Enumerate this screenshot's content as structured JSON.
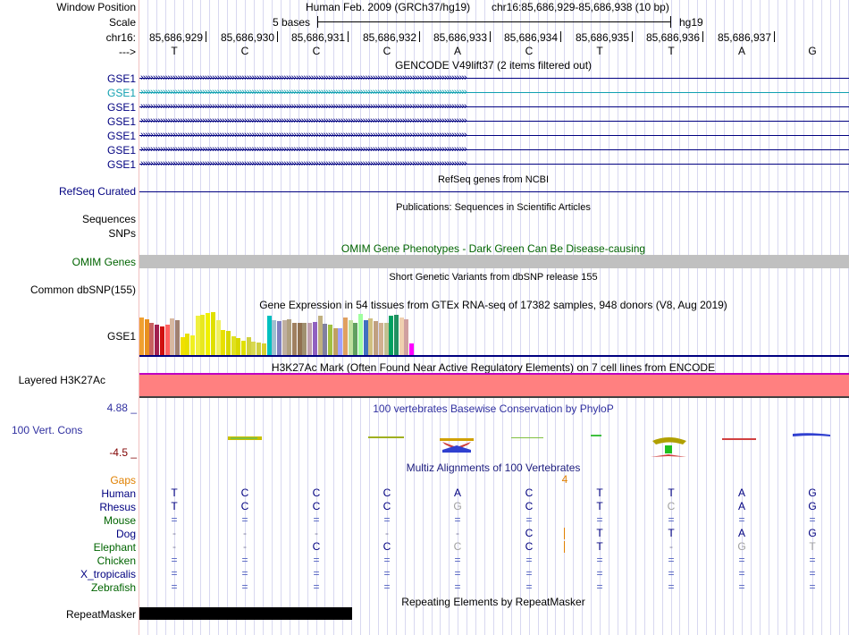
{
  "header": {
    "window_position_label": "Window Position",
    "assembly": "Human Feb. 2009 (GRCh37/hg19)",
    "range": "chr16:85,686,929-85,686,938 (10 bp)",
    "scale_label": "Scale",
    "scale_text": "5 bases",
    "scale_assembly": "hg19",
    "chrom_label": "chr16:",
    "strand_label": "--->",
    "positions": [
      "85,686,929",
      "85,686,930",
      "85,686,931",
      "85,686,932",
      "85,686,933",
      "85,686,934",
      "85,686,935",
      "85,686,936",
      "85,686,937"
    ]
  },
  "sequence": [
    "T",
    "C",
    "C",
    "C",
    "A",
    "C",
    "T",
    "T",
    "A",
    "G"
  ],
  "gencode": {
    "title": "GENCODE V49lift37 (2 items filtered out)",
    "items": [
      "GSE1",
      "GSE1",
      "GSE1",
      "GSE1",
      "GSE1",
      "GSE1",
      "GSE1"
    ]
  },
  "refseq": {
    "label": "RefSeq Curated",
    "title": "RefSeq genes from NCBI"
  },
  "publications": {
    "label_sequences": "Sequences",
    "label_snps": "SNPs",
    "title": "Publications: Sequences in Scientific Articles"
  },
  "omim": {
    "label": "OMIM Genes",
    "title": "OMIM Gene Phenotypes - Dark Green Can Be Disease-causing"
  },
  "dbsnp": {
    "label": "Common dbSNP(155)",
    "title": "Short Genetic Variants from dbSNP release 155"
  },
  "gtex": {
    "label": "GSE1",
    "title": "Gene Expression in 54 tissues from GTEx RNA-seq of 17382 samples, 948 donors (V8, Aug 2019)",
    "values": [
      0.88,
      0.84,
      0.74,
      0.7,
      0.66,
      0.7,
      0.86,
      0.82,
      0.42,
      0.5,
      0.46,
      0.92,
      0.94,
      0.98,
      1.0,
      0.82,
      0.58,
      0.56,
      0.44,
      0.4,
      0.34,
      0.42,
      0.32,
      0.3,
      0.28,
      0.92,
      0.82,
      0.8,
      0.82,
      0.84,
      0.76,
      0.76,
      0.74,
      0.74,
      0.78,
      0.92,
      0.72,
      0.7,
      0.62,
      0.62,
      0.88,
      0.82,
      0.76,
      0.96,
      0.82,
      0.86,
      0.8,
      0.76,
      0.76,
      0.92,
      0.94,
      0.88,
      0.84,
      0.28
    ],
    "colors": [
      "#f0a030",
      "#e89020",
      "#c86060",
      "#a02050",
      "#d01010",
      "#ff6060",
      "#d8b8a0",
      "#a08070",
      "#f0e000",
      "#e8e000",
      "#f0f020",
      "#f0f040",
      "#e8e820",
      "#f0f000",
      "#e0e000",
      "#f0f060",
      "#e8e000",
      "#d8d800",
      "#e0e020",
      "#d8d800",
      "#e0e000",
      "#d0d040",
      "#d8d850",
      "#d0d040",
      "#d8d030",
      "#00c0c0",
      "#a0c0d0",
      "#8080c0",
      "#c0b0a0",
      "#b0a080",
      "#a08060",
      "#907050",
      "#a09070",
      "#c0a0b0",
      "#9060c0",
      "#c0b080",
      "#8080a0",
      "#a0c040",
      "#c0a060",
      "#a0a0ff",
      "#e0a060",
      "#c0e0a0",
      "#60a060",
      "#a0ffa0",
      "#4070c0",
      "#d0c080",
      "#c0a080",
      "#d0b090",
      "#c0c090",
      "#00a060",
      "#209060",
      "#f0d0b0",
      "#d0a0a0",
      "#ff00ff"
    ]
  },
  "h3k27ac": {
    "label": "Layered H3K27Ac",
    "title": "H3K27Ac Mark (Often Found Near Active Regulatory Elements) on 7 cell lines from ENCODE"
  },
  "phylop": {
    "label": "100 Vert. Cons",
    "max_label": "4.88 _",
    "min_label": "-4.5 _",
    "title": "100 vertebrates Basewise Conservation by PhyloP"
  },
  "multiz": {
    "title": "Multiz Alignments of 100 Vertebrates",
    "gaps_label": "Gaps",
    "gaps_value": "4",
    "species": [
      {
        "name": "Human",
        "bases": [
          "T",
          "C",
          "C",
          "C",
          "A",
          "C",
          "T",
          "T",
          "A",
          "G"
        ]
      },
      {
        "name": "Rhesus",
        "bases": [
          "T",
          "C",
          "C",
          "C",
          "G",
          "C",
          "T",
          "C",
          "A",
          "G"
        ]
      },
      {
        "name": "Mouse",
        "bases": [
          "=",
          "=",
          "=",
          "=",
          "=",
          "=",
          "=",
          "=",
          "=",
          "="
        ]
      },
      {
        "name": "Dog",
        "bases": [
          "-",
          "-",
          "-",
          "-",
          "-",
          "C",
          "T",
          "T",
          "A",
          "G"
        ]
      },
      {
        "name": "Elephant",
        "bases": [
          "-",
          "-",
          "C",
          "C",
          "C",
          "C",
          "T",
          "-",
          "G",
          "T"
        ]
      },
      {
        "name": "Chicken",
        "bases": [
          "=",
          "=",
          "=",
          "=",
          "=",
          "=",
          "=",
          "=",
          "=",
          "="
        ]
      },
      {
        "name": "X_tropicalis",
        "bases": [
          "=",
          "=",
          "=",
          "=",
          "=",
          "=",
          "=",
          "=",
          "=",
          "="
        ]
      },
      {
        "name": "Zebrafish",
        "bases": [
          "=",
          "=",
          "=",
          "=",
          "=",
          "=",
          "=",
          "=",
          "=",
          "="
        ]
      }
    ]
  },
  "repeatmasker": {
    "label": "RepeatMasker",
    "title": "Repeating Elements by RepeatMasker"
  },
  "colors": {
    "label_navy": "#000080",
    "omim_green": "#006400",
    "h3k27ac_fill": "#ff8080",
    "h3k27ac_border": "#c000c0",
    "gaps_orange": "#e08000"
  }
}
